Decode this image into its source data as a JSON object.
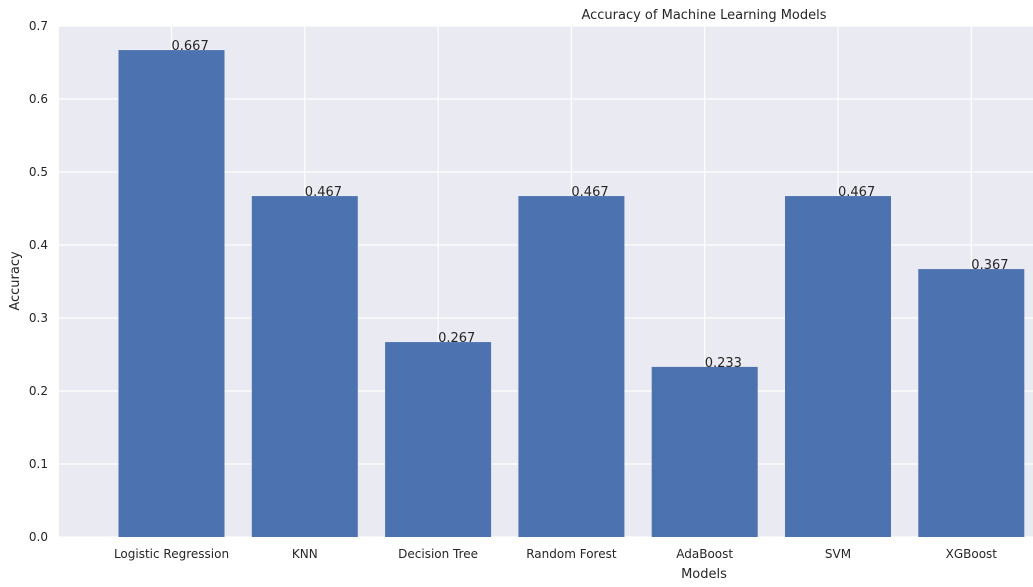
{
  "chart_data": {
    "type": "bar",
    "title": "Accuracy of Machine Learning Models",
    "xlabel": "Models",
    "ylabel": "Accuracy",
    "categories": [
      "Logistic Regression",
      "KNN",
      "Decision Tree",
      "Random Forest",
      "AdaBoost",
      "SVM",
      "XGBoost"
    ],
    "values": [
      0.667,
      0.467,
      0.267,
      0.467,
      0.233,
      0.467,
      0.367
    ],
    "value_labels": [
      "0.667",
      "0.467",
      "0.267",
      "0.467",
      "0.233",
      "0.467",
      "0.367"
    ],
    "ylim": [
      0,
      0.7
    ],
    "yticks": [
      "0.0",
      "0.1",
      "0.2",
      "0.3",
      "0.4",
      "0.5",
      "0.6",
      "0.7"
    ],
    "grid": true,
    "colors": {
      "bar": "#4c72b0",
      "plot_background": "#eaeaf2",
      "grid": "#ffffff",
      "text": "#262626"
    }
  }
}
